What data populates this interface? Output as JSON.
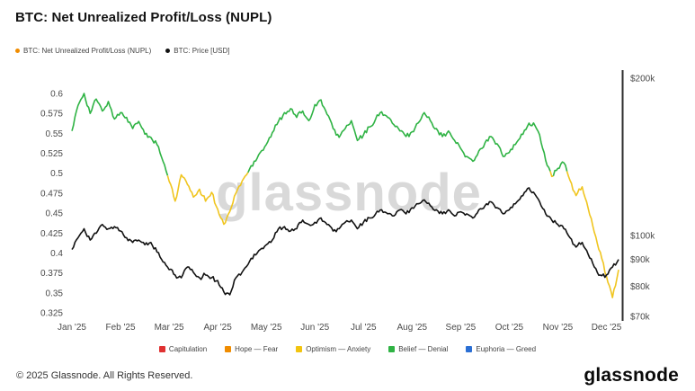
{
  "header": {
    "title": "BTC: Net Unrealized Profit/Loss (NUPL)"
  },
  "legend": {
    "series": [
      {
        "label": "BTC: Net Unrealized Profit/Loss (NUPL)",
        "color": "#f08c00"
      },
      {
        "label": "BTC: Price [USD]",
        "color": "#121212"
      }
    ]
  },
  "bands": [
    {
      "label": "Capitulation",
      "color": "#e03131"
    },
    {
      "label": "Hope — Fear",
      "color": "#f08c00"
    },
    {
      "label": "Optimism — Anxiety",
      "color": "#f2c40f"
    },
    {
      "label": "Belief — Denial",
      "color": "#2fb344"
    },
    {
      "label": "Euphoria — Greed",
      "color": "#2b6fd4"
    }
  ],
  "colors": {
    "nupl_green": "#2fb344",
    "nupl_yellow": "#f0c51f",
    "price": "#121212"
  },
  "footer": {
    "copyright": "© 2025 Glassnode. All Rights Reserved.",
    "logo_text": "glassnode"
  },
  "chart_data": {
    "type": "line",
    "title": "BTC: Net Unrealized Profit/Loss (NUPL)",
    "watermark": "glassnode",
    "x_labels": [
      "Jan '25",
      "Feb '25",
      "Mar '25",
      "Apr '25",
      "May '25",
      "Jun '25",
      "Jul '25",
      "Aug '25",
      "Sep '25",
      "Oct '25",
      "Nov '25",
      "Dec '25"
    ],
    "points_per_month": 8,
    "left_ticks": [
      0.6,
      0.575,
      0.55,
      0.525,
      0.5,
      0.475,
      0.45,
      0.425,
      0.4,
      0.375,
      0.35,
      0.325
    ],
    "left_axis_range": [
      0.325,
      0.6
    ],
    "right_ticks": [
      {
        "label": "$200k",
        "value": 200000
      },
      {
        "label": "$100k",
        "value": 100000
      },
      {
        "label": "$90k",
        "value": 90000
      },
      {
        "label": "$80k",
        "value": 80000
      },
      {
        "label": "$70k",
        "value": 70000
      }
    ],
    "right_axis_scale": "log",
    "right_axis_range": [
      70000,
      200000
    ],
    "band_threshold": 0.5,
    "series": [
      {
        "name": "BTC: Net Unrealized Profit/Loss (NUPL)",
        "axis": "left",
        "values": [
          0.553,
          0.585,
          0.6,
          0.575,
          0.593,
          0.578,
          0.59,
          0.568,
          0.576,
          0.57,
          0.556,
          0.565,
          0.549,
          0.545,
          0.536,
          0.515,
          0.49,
          0.465,
          0.498,
          0.486,
          0.47,
          0.48,
          0.465,
          0.476,
          0.455,
          0.436,
          0.452,
          0.475,
          0.49,
          0.501,
          0.515,
          0.526,
          0.536,
          0.551,
          0.565,
          0.576,
          0.581,
          0.57,
          0.578,
          0.566,
          0.586,
          0.592,
          0.574,
          0.556,
          0.545,
          0.556,
          0.566,
          0.541,
          0.548,
          0.558,
          0.568,
          0.577,
          0.57,
          0.561,
          0.553,
          0.546,
          0.552,
          0.563,
          0.576,
          0.566,
          0.556,
          0.546,
          0.553,
          0.541,
          0.531,
          0.521,
          0.515,
          0.528,
          0.538,
          0.546,
          0.537,
          0.521,
          0.526,
          0.536,
          0.549,
          0.559,
          0.563,
          0.548,
          0.516,
          0.496,
          0.506,
          0.513,
          0.491,
          0.472,
          0.483,
          0.456,
          0.426,
          0.401,
          0.371,
          0.344,
          0.379
        ]
      },
      {
        "name": "BTC: Price [USD]",
        "axis": "right",
        "unit": "USD thousands",
        "values": [
          94,
          99,
          103,
          98,
          101,
          105,
          103,
          104,
          102,
          99,
          97,
          98,
          96,
          97,
          93,
          89,
          86,
          84,
          83,
          87,
          85,
          83,
          84,
          83,
          82,
          78,
          77,
          83,
          85,
          88,
          92,
          94,
          96,
          98,
          103,
          104,
          102,
          103,
          107,
          105,
          106,
          108,
          105,
          102,
          103,
          106,
          107,
          103,
          106,
          108,
          110,
          112,
          110,
          109,
          112,
          110,
          113,
          115,
          117,
          114,
          112,
          110,
          112,
          109,
          111,
          110,
          108,
          112,
          114,
          116,
          113,
          110,
          112,
          115,
          119,
          123,
          121,
          116,
          110,
          107,
          105,
          103,
          99,
          95,
          97,
          92,
          87,
          84,
          84,
          87,
          90
        ]
      }
    ]
  }
}
